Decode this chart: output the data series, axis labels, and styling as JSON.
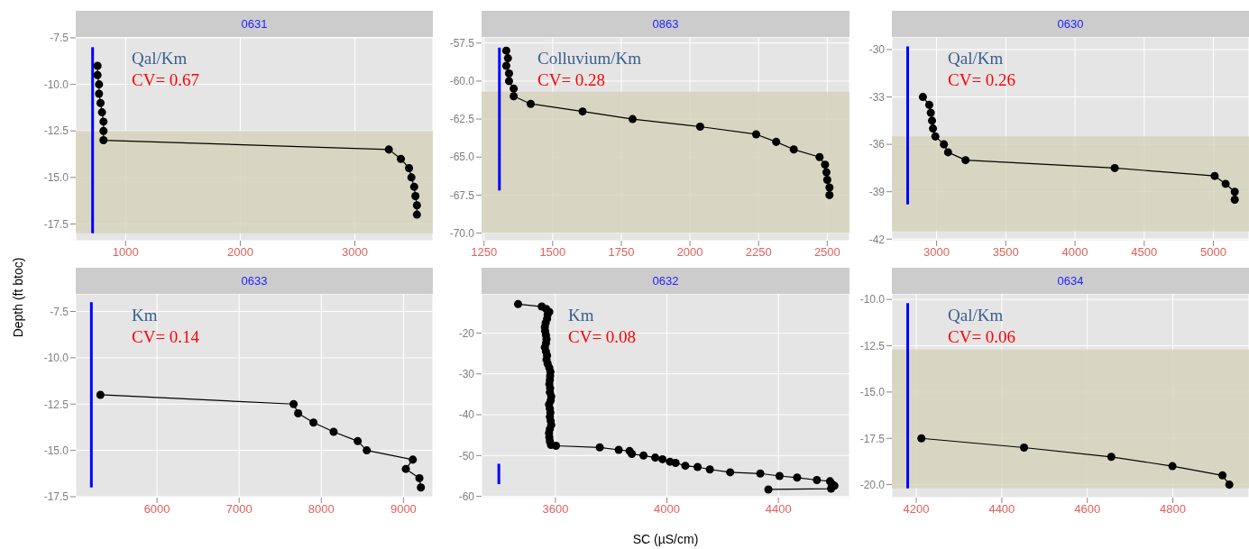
{
  "chart_data": [
    {
      "type": "line",
      "title": "0631",
      "ylabel": "Depth (ft btoc)",
      "annotations": [
        "Qal/Km",
        "CV= 0.67"
      ],
      "marker": "circle",
      "grid": true,
      "xlim": [
        565,
        3680
      ],
      "ylim": [
        -18.4,
        -7.45
      ],
      "xticks": [
        1000,
        2000,
        3000
      ],
      "yticks": [
        -7.5,
        {
          "value": -10,
          "label": "-10.0"
        },
        -12.5,
        {
          "value": -15,
          "label": "-15.0"
        },
        -17.5
      ],
      "bands": [
        {
          "axis": "y",
          "from": -12.5,
          "to": -18,
          "color": "#d6d4bc"
        }
      ],
      "series": [
        {
          "color": "#000000",
          "x": [
            755,
            755,
            768,
            768,
            781,
            794,
            807,
            807,
            807,
            3296,
            3401,
            3472,
            3493,
            3517,
            3528,
            3541,
            3541
          ],
          "values": [
            -9,
            -9.5,
            -10,
            -10.5,
            -11,
            -11.5,
            -12,
            -12.5,
            -13,
            -13.5,
            -14,
            -14.5,
            -15,
            -15.5,
            -16,
            -16.5,
            -17
          ]
        },
        {
          "color": "#0000ff",
          "marker": "none",
          "x": [
            712,
            712
          ],
          "values": [
            -8,
            -18
          ]
        }
      ]
    },
    {
      "type": "line",
      "title": "0863",
      "annotations": [
        "Colluvium/Km",
        "CV= 0.28"
      ],
      "marker": "circle",
      "grid": true,
      "xlim": [
        1241,
        2581
      ],
      "ylim": [
        -70.5,
        -57.1
      ],
      "xticks": [
        1250,
        1500,
        1750,
        2000,
        2250,
        2500
      ],
      "yticks": [
        -57.5,
        {
          "value": -60,
          "label": "-60.0"
        },
        -62.5,
        {
          "value": -65,
          "label": "-65.0"
        },
        -67.5,
        {
          "value": -70,
          "label": "-70.0"
        }
      ],
      "bands": [
        {
          "axis": "y",
          "from": -60.7,
          "to": -70,
          "color": "#d6d4bc"
        }
      ],
      "series": [
        {
          "color": "#000000",
          "x": [
            1331,
            1337,
            1331,
            1341,
            1341,
            1358,
            1358,
            1420,
            1609,
            1791,
            2037,
            2241,
            2314,
            2378,
            2472,
            2492,
            2497,
            2500,
            2508,
            2508
          ],
          "values": [
            -58,
            -58.5,
            -59,
            -59.5,
            -60,
            -60.5,
            -61,
            -61.5,
            -62,
            -62.5,
            -63,
            -63.5,
            -64,
            -64.5,
            -65,
            -65.5,
            -66,
            -66.5,
            -67,
            -67.5
          ]
        },
        {
          "color": "#0000ff",
          "marker": "none",
          "x": [
            1306,
            1306
          ],
          "values": [
            -57.8,
            -67.2
          ]
        }
      ]
    },
    {
      "type": "line",
      "title": "0630",
      "annotations": [
        "Qal/Km",
        "CV= 0.26"
      ],
      "marker": "circle",
      "grid": true,
      "xlim": [
        2677,
        5257
      ],
      "ylim": [
        -42.1,
        -29.2
      ],
      "xticks": [
        3000,
        3500,
        4000,
        4500,
        5000
      ],
      "yticks": [
        -30,
        -33,
        -36,
        -39,
        -42
      ],
      "bands": [
        {
          "axis": "y",
          "from": -35.5,
          "to": -41.5,
          "color": "#d6d4bc"
        }
      ],
      "series": [
        {
          "color": "#000000",
          "x": [
            2901,
            2947,
            2958,
            2967,
            2974,
            2991,
            3053,
            3083,
            3209,
            4287,
            5009,
            5088,
            5154,
            5154
          ],
          "values": [
            -33,
            -33.5,
            -34,
            -34.5,
            -35,
            -35.5,
            -36,
            -36.5,
            -37,
            -37.5,
            -38,
            -38.5,
            -39,
            -39.5
          ]
        },
        {
          "color": "#0000ff",
          "marker": "none",
          "x": [
            2791,
            2791
          ],
          "values": [
            -29.8,
            -39.8
          ]
        }
      ]
    },
    {
      "type": "line",
      "title": "0633",
      "annotations": [
        "Km",
        "CV= 0.14"
      ],
      "marker": "circle",
      "grid": true,
      "xlim": [
        5011,
        9358
      ],
      "ylim": [
        -17.55,
        -6.55
      ],
      "xticks": [
        6000,
        7000,
        8000,
        9000
      ],
      "yticks": [
        -7.5,
        {
          "value": -10,
          "label": "-10.0"
        },
        -12.5,
        {
          "value": -15,
          "label": "-15.0"
        },
        -17.5
      ],
      "series": [
        {
          "color": "#000000",
          "x": [
            5311,
            7663,
            7718,
            7905,
            8150,
            8443,
            8553,
            9114,
            9029,
            9194,
            9212
          ],
          "values": [
            -12,
            -12.5,
            -13,
            -13.5,
            -14,
            -14.5,
            -15,
            -15.5,
            -16,
            -16.5,
            -17
          ]
        },
        {
          "color": "#0000ff",
          "marker": "none",
          "x": [
            5201,
            5201
          ],
          "values": [
            -7,
            -17
          ]
        }
      ]
    },
    {
      "type": "line",
      "title": "0632",
      "xlabel": "SC (µS/cm)",
      "annotations": [
        "Km",
        "CV= 0.08"
      ],
      "marker": "circle",
      "grid": true,
      "xlim": [
        3335,
        4655
      ],
      "ylim": [
        -60.3,
        -10.4
      ],
      "xticks": [
        3600,
        4000,
        4400
      ],
      "yticks": [
        -20,
        -30,
        -40,
        -50,
        -60
      ],
      "series": [
        {
          "color": "#000000",
          "x": [
            3466,
            3551,
            3567,
            3578,
            3572,
            3570,
            3565,
            3562,
            3563,
            3566,
            3568,
            3566,
            3562,
            3566,
            3570,
            3568,
            3572,
            3578,
            3582,
            3581,
            3580,
            3578,
            3581,
            3580,
            3585,
            3583,
            3577,
            3580,
            3582,
            3580,
            3583,
            3585,
            3580,
            3577,
            3578,
            3580,
            3584,
            3602,
            3759,
            3827,
            3866,
            3874,
            3916,
            3958,
            3984,
            4011,
            4031,
            4066,
            4110,
            4154,
            4227,
            4335,
            4404,
            4467,
            4538,
            4585,
            4591,
            4601,
            4589,
            4364
          ],
          "values": [
            -12.9,
            -13.5,
            -14.1,
            -14.8,
            -15.5,
            -16.5,
            -17.5,
            -18.5,
            -19.5,
            -20.5,
            -21.5,
            -22.5,
            -23.5,
            -24.5,
            -25.5,
            -26.5,
            -27.5,
            -28.5,
            -29.5,
            -30.5,
            -31.5,
            -32.5,
            -33.5,
            -34.5,
            -35.5,
            -36.5,
            -37.5,
            -38.5,
            -39.5,
            -40.5,
            -41.5,
            -42.5,
            -43.5,
            -44.5,
            -45.5,
            -46.5,
            -47.4,
            -47.6,
            -48,
            -48.6,
            -48.9,
            -49.6,
            -50,
            -50.5,
            -50.9,
            -51.5,
            -51.8,
            -52.5,
            -52.8,
            -53.4,
            -54.1,
            -54.4,
            -55,
            -55.4,
            -56,
            -56.3,
            -56.9,
            -57.4,
            -58.1,
            -58.3
          ]
        },
        {
          "color": "#0000ff",
          "marker": "none",
          "x": [
            3397,
            3397
          ],
          "values": [
            -52,
            -57
          ]
        }
      ]
    },
    {
      "type": "line",
      "title": "0634",
      "annotations": [
        "Qal/Km",
        "CV= 0.06"
      ],
      "marker": "circle",
      "grid": true,
      "xlim": [
        4143,
        4978
      ],
      "ylim": [
        -20.7,
        -9.7
      ],
      "xticks": [
        4200,
        4400,
        4600,
        4800
      ],
      "yticks": [
        {
          "value": -10,
          "label": "-10.0"
        },
        -12.5,
        {
          "value": -15,
          "label": "-15.0"
        },
        -17.5,
        {
          "value": -20,
          "label": "-20.0"
        }
      ],
      "bands": [
        {
          "axis": "y",
          "from": -12.7,
          "to": -20.2,
          "color": "#d6d4bc"
        }
      ],
      "series": [
        {
          "color": "#000000",
          "x": [
            4212,
            4452,
            4656,
            4799,
            4916,
            4932
          ],
          "values": [
            -17.5,
            -18,
            -18.5,
            -19,
            -19.5,
            -20
          ]
        },
        {
          "color": "#0000ff",
          "marker": "none",
          "x": [
            4180,
            4180
          ],
          "values": [
            -10.2,
            -20.2
          ]
        }
      ]
    }
  ]
}
